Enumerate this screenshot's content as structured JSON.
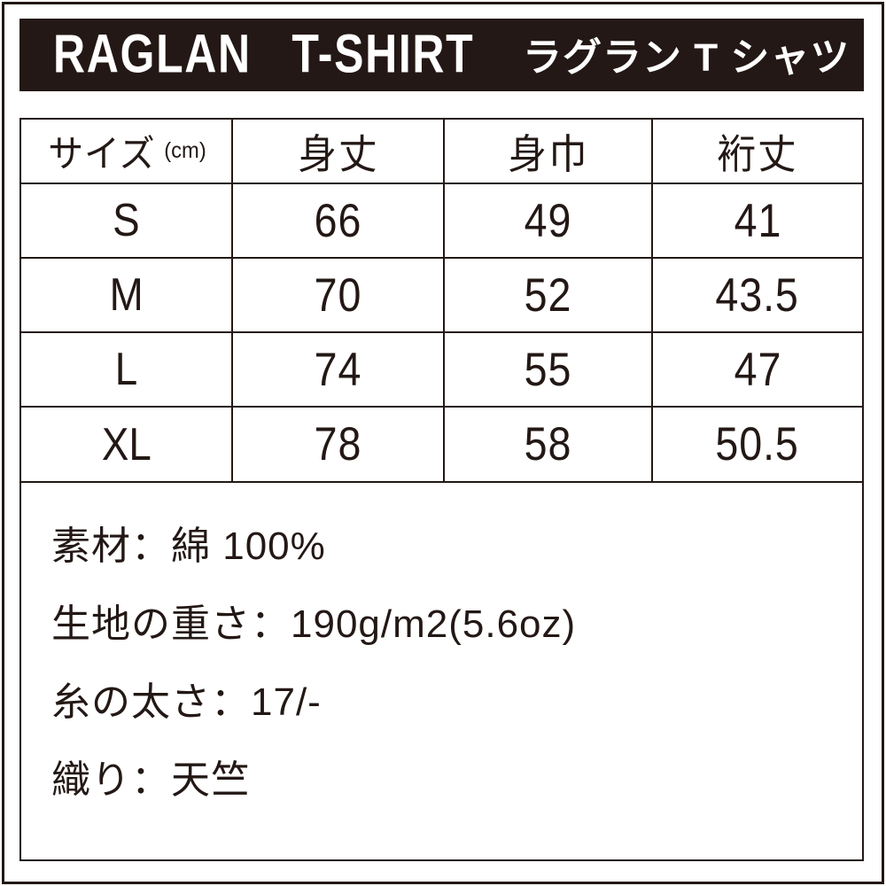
{
  "colors": {
    "ink": "#231815",
    "bar_background": "#231815",
    "bar_text": "#ffffff",
    "page_background": "#ffffff"
  },
  "title_bar": {
    "title_en": "RAGLAN T-SHIRT",
    "title_ja": "ラグラン T シャツ"
  },
  "size_table": {
    "header": {
      "size_label": "サイズ",
      "size_unit": "(cm)",
      "body_length": "身丈",
      "body_width": "身巾",
      "sleeve_length": "裄丈"
    },
    "rows": [
      {
        "size": "S",
        "body_length": "66",
        "body_width": "49",
        "sleeve_length": "41"
      },
      {
        "size": "M",
        "body_length": "70",
        "body_width": "52",
        "sleeve_length": "43.5"
      },
      {
        "size": "L",
        "body_length": "74",
        "body_width": "55",
        "sleeve_length": "47"
      },
      {
        "size": "XL",
        "body_length": "78",
        "body_width": "58",
        "sleeve_length": "50.5"
      }
    ]
  },
  "details": {
    "lines": [
      "素材：綿 100%",
      "生地の重さ：190g/m2(5.6oz)",
      "糸の太さ：17/-",
      "織り：天竺"
    ]
  }
}
